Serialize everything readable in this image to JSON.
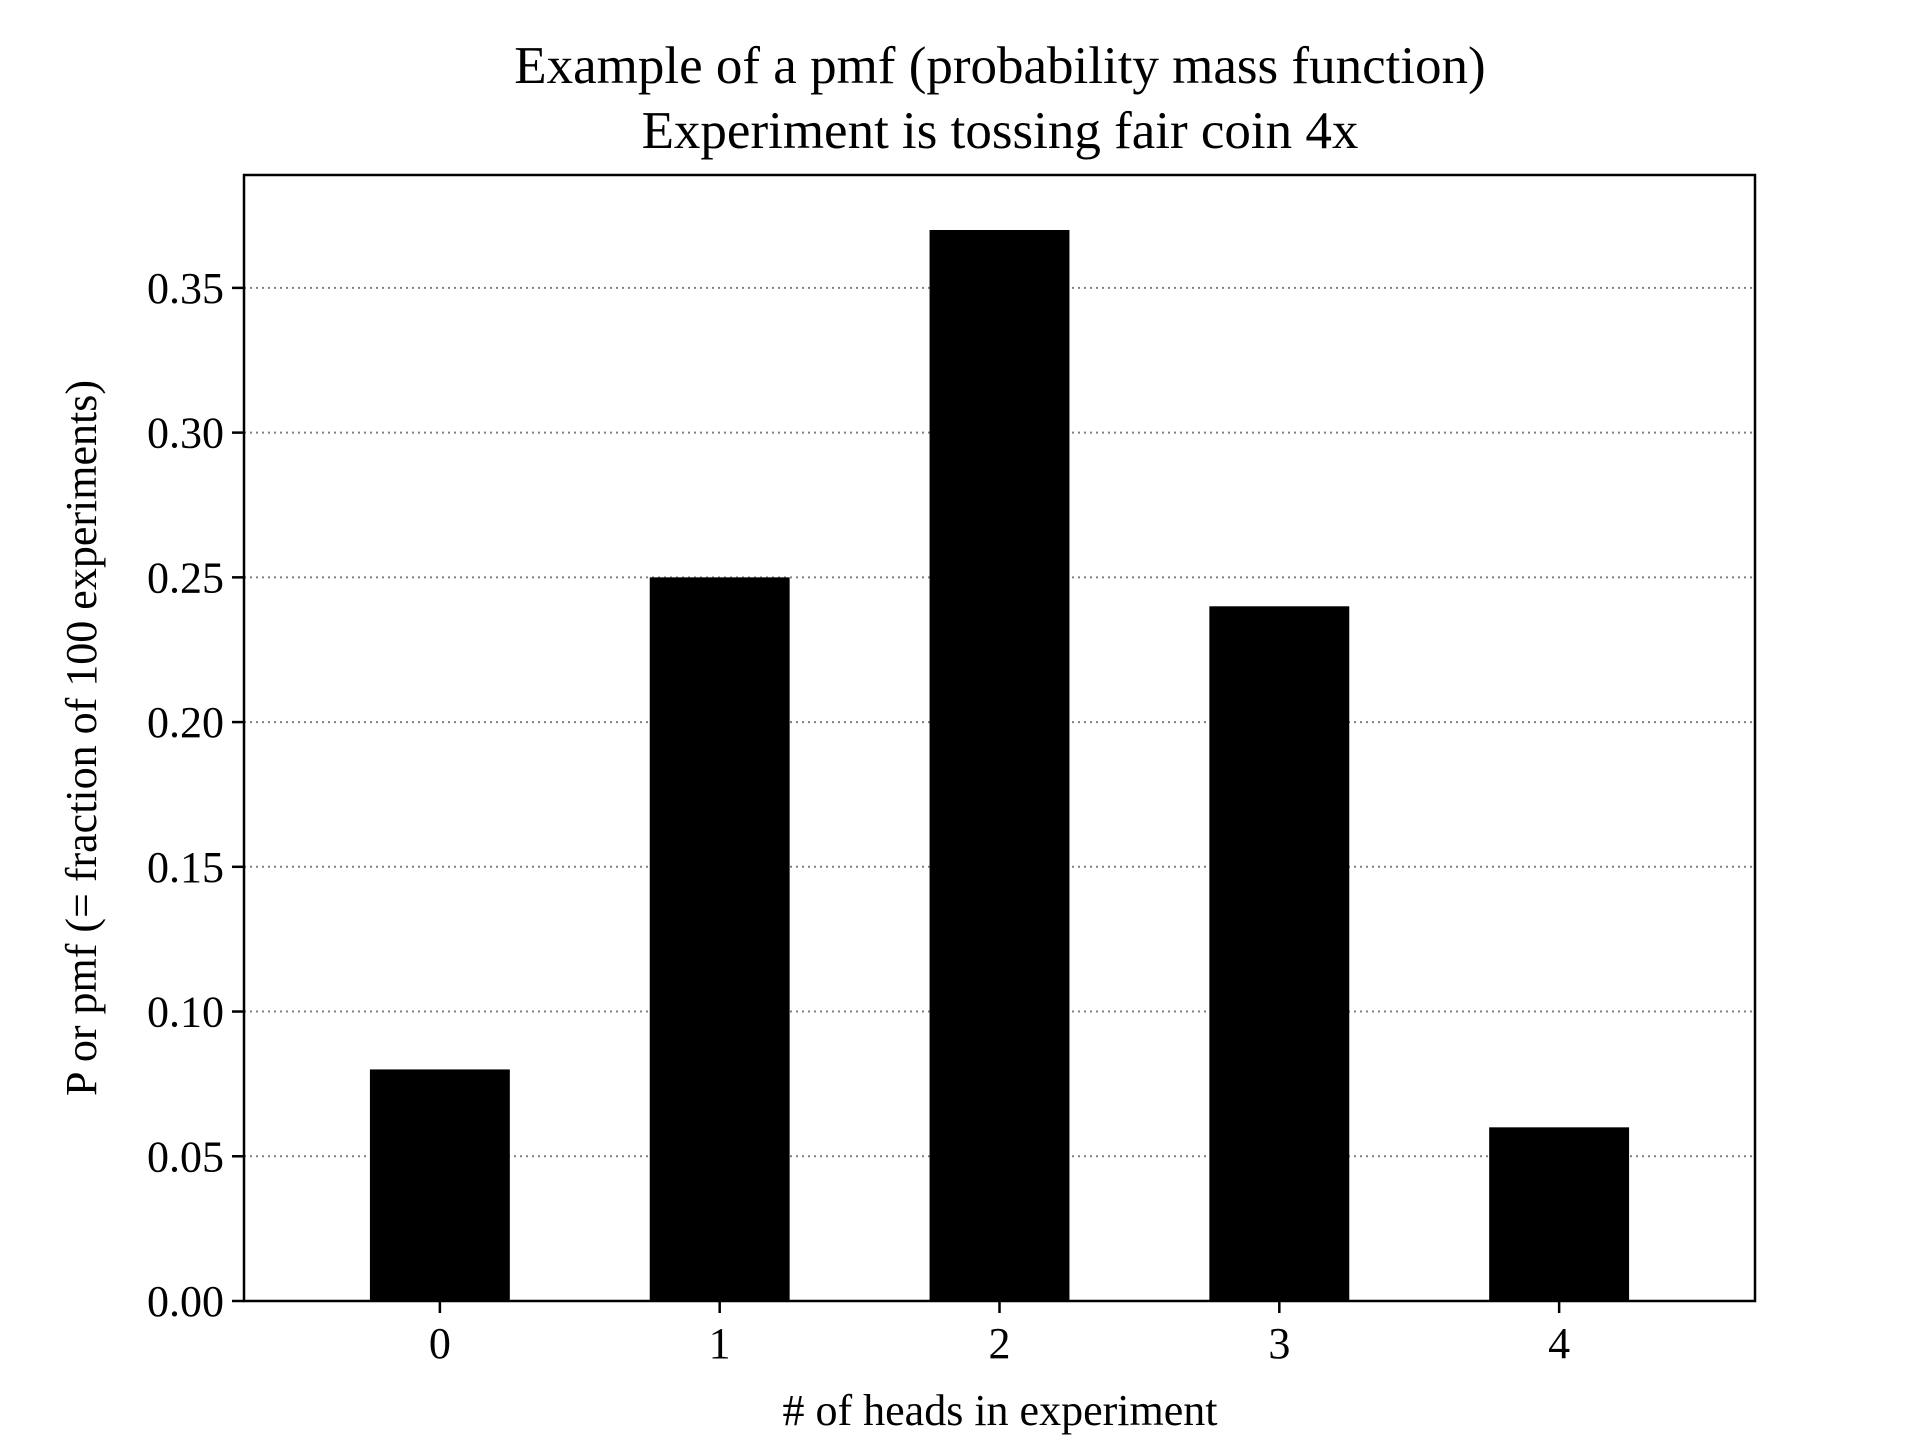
{
  "chart_data": {
    "type": "bar",
    "title": "Example of a pmf (probability mass function)",
    "subtitle": "Experiment is tossing fair coin 4x",
    "xlabel": "# of heads in experiment",
    "ylabel": "P or pmf (= fraction of 100 experiments)",
    "categories": [
      "0",
      "1",
      "2",
      "3",
      "4"
    ],
    "values": [
      0.08,
      0.25,
      0.37,
      0.24,
      0.06
    ],
    "ylim": [
      0,
      0.389
    ],
    "yticks": [
      0.0,
      0.05,
      0.1,
      0.15,
      0.2,
      0.25,
      0.3,
      0.35
    ],
    "ytick_labels": [
      "0.00",
      "0.05",
      "0.10",
      "0.15",
      "0.20",
      "0.25",
      "0.30",
      "0.35"
    ],
    "grid": "horizontal dotted",
    "colors": {
      "bar": "#000000",
      "grid": "#808080",
      "axes": "#000000"
    }
  }
}
